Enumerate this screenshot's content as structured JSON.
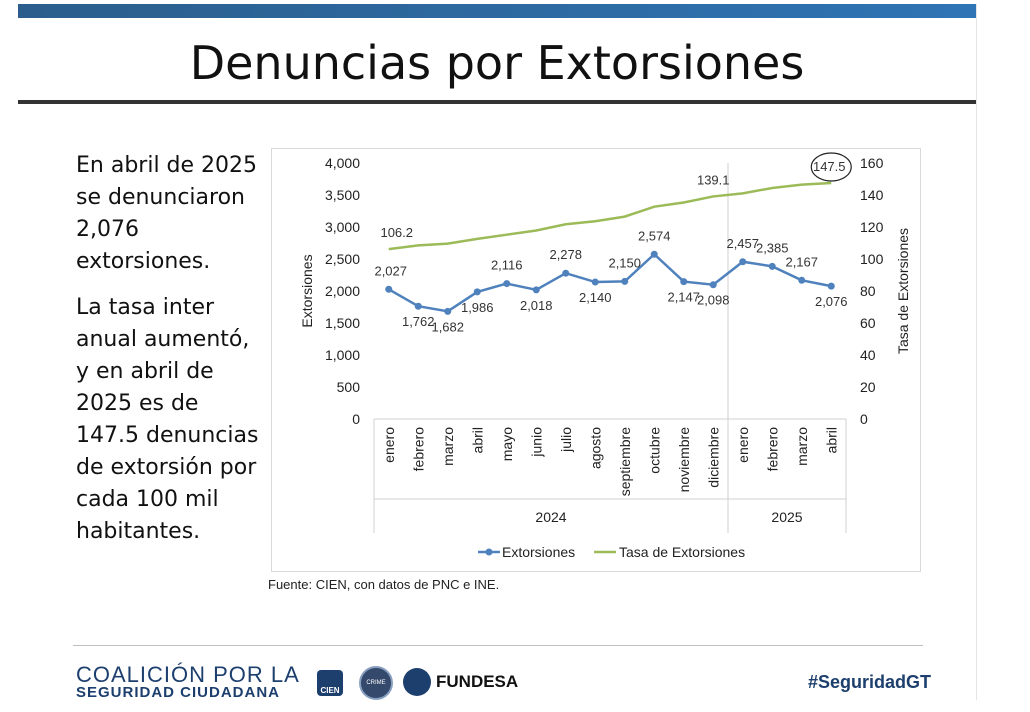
{
  "slide": {
    "title": "Denuncias por Extorsiones",
    "paragraph1": "En abril de 2025 se denunciaron 2,076 extorsiones.",
    "paragraph2": "La tasa inter anual aumentó, y en abril de 2025 es de 147.5 denuncias de extorsión por cada 100 mil habitantes.",
    "source": "Fuente: CIEN, con datos de PNC e INE.",
    "footer": {
      "coalition_line1": "COALICIÓN POR LA",
      "coalition_line2": "SEGURIDAD CIUDADANA",
      "logo_cien": "CIEN",
      "logo_crime": "CRIME",
      "logo_fundesa": "FUNDESA",
      "hashtag": "#SeguridadGT"
    },
    "colors": {
      "accent_bar": "#2f74b5",
      "series1": "#4f81bd",
      "series2": "#9bbb59",
      "footer_text": "#1d3f6e"
    }
  },
  "chart_data": {
    "type": "line",
    "categories": [
      "enero",
      "febrero",
      "marzo",
      "abril",
      "mayo",
      "junio",
      "julio",
      "agosto",
      "septiembre",
      "octubre",
      "noviembre",
      "diciembre",
      "enero",
      "febrero",
      "marzo",
      "abril"
    ],
    "groups": [
      {
        "label": "2024",
        "count": 12
      },
      {
        "label": "2025",
        "count": 4
      }
    ],
    "series": [
      {
        "name": "Extorsiones",
        "axis": "left",
        "color": "#4f81bd",
        "values": [
          2027,
          1762,
          1682,
          1986,
          2116,
          2018,
          2278,
          2140,
          2150,
          2574,
          2147,
          2098,
          2457,
          2385,
          2167,
          2076
        ],
        "labels": [
          "2,027",
          "1,762",
          "1,682",
          "1,986",
          "2,116",
          "2,018",
          "2,278",
          "2,140",
          "2,150",
          "2,574",
          "2,147",
          "2,098",
          "2,457",
          "2,385",
          "2,167",
          "2,076"
        ]
      },
      {
        "name": "Tasa de Extorsiones",
        "axis": "right",
        "color": "#9bbb59",
        "values": [
          106.2,
          108.5,
          109.6,
          112.6,
          115.2,
          117.8,
          121.7,
          123.6,
          126.5,
          132.7,
          135.3,
          139.1,
          141.0,
          144.4,
          146.5,
          147.5
        ],
        "labels": [
          "106.2",
          "",
          "",
          "",
          "",
          "",
          "",
          "",
          "",
          "",
          "",
          "139.1",
          "",
          "",
          "",
          "147.5"
        ]
      }
    ],
    "ylabel_left": "Extorsiones",
    "ylabel_right": "Tasa de Extorsiones",
    "ylim_left": [
      0,
      4000
    ],
    "ylim_right": [
      0,
      160
    ],
    "yticks_left": [
      "0",
      "500",
      "1,000",
      "1,500",
      "2,000",
      "2,500",
      "3,000",
      "3,500",
      "4,000"
    ],
    "yticks_right": [
      "0",
      "20",
      "40",
      "60",
      "80",
      "100",
      "120",
      "140",
      "160"
    ],
    "grid": false,
    "legend_position": "bottom"
  }
}
